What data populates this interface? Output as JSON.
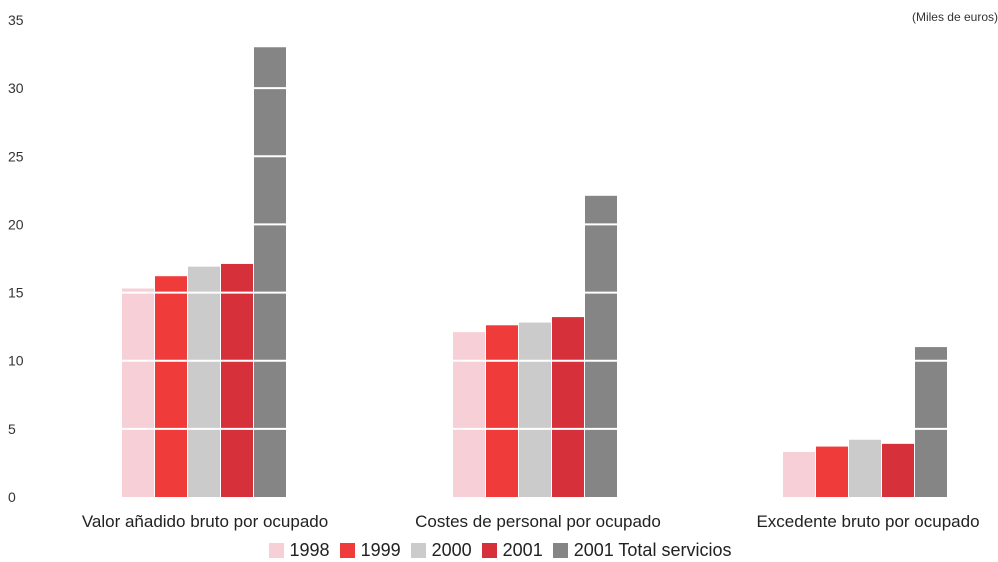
{
  "units_note": "(Miles de euros)",
  "colors": {
    "1998": "#f7cfd6",
    "1999": "#f03b3b",
    "2000": "#cbcbcb",
    "2001": "#d6313a",
    "total": "#858585"
  },
  "chart_data": {
    "type": "bar",
    "categories": [
      "Valor añadido bruto por ocupado",
      "Costes de personal por ocupado",
      "Excedente bruto por ocupado"
    ],
    "series": [
      {
        "name": "1998",
        "values": [
          15.3,
          12.1,
          3.3
        ]
      },
      {
        "name": "1999",
        "values": [
          16.2,
          12.6,
          3.7
        ]
      },
      {
        "name": "2000",
        "values": [
          16.9,
          12.8,
          4.2
        ]
      },
      {
        "name": "2001",
        "values": [
          17.1,
          13.2,
          3.9
        ]
      },
      {
        "name": "2001 Total servicios",
        "values": [
          33.0,
          22.1,
          11.0
        ]
      }
    ],
    "ylim": [
      0,
      35
    ],
    "yticks": [
      0,
      5,
      10,
      15,
      20,
      25,
      30,
      35
    ],
    "grid": "white lines across bars only",
    "legend_position": "bottom-center"
  }
}
